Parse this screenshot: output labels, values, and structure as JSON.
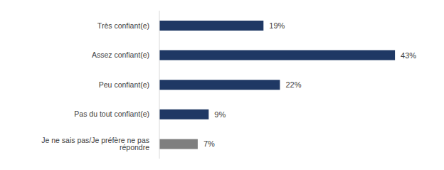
{
  "chart_data": {
    "type": "bar",
    "orientation": "horizontal",
    "categories": [
      "Très confiant(e)",
      "Assez confiant(e)",
      "Peu confiant(e)",
      "Pas du tout confiant(e)",
      "Je ne sais pas/Je préfère ne pas répondre"
    ],
    "values": [
      19,
      43,
      22,
      9,
      7
    ],
    "value_labels": [
      "19%",
      "43%",
      "22%",
      "9%",
      "7%"
    ],
    "colors": [
      "#1f3864",
      "#1f3864",
      "#1f3864",
      "#1f3864",
      "#7f7f7f"
    ],
    "xlim": [
      0,
      50
    ],
    "data_labels": true,
    "tick_labels": "y",
    "grid": false
  }
}
